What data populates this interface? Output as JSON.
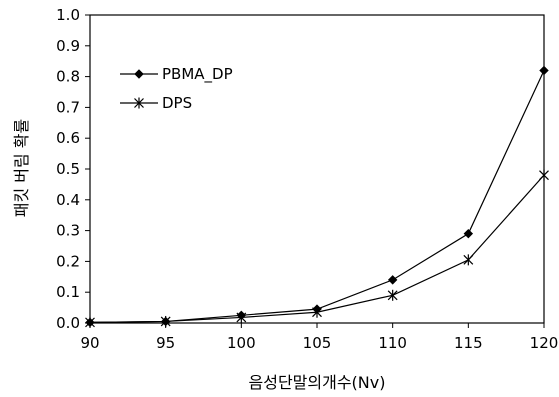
{
  "chart_data": {
    "type": "line",
    "x": [
      90,
      95,
      100,
      105,
      110,
      115,
      120
    ],
    "xlabel": "음성단말의개수(Nv)",
    "ylabel": "패킷 버림 확률",
    "xlim": [
      90,
      120
    ],
    "ylim": [
      0,
      1
    ],
    "x_ticks": [
      "90",
      "95",
      "100",
      "105",
      "110",
      "115",
      "120"
    ],
    "y_ticks": [
      "0.0",
      "0.1",
      "0.2",
      "0.3",
      "0.4",
      "0.5",
      "0.6",
      "0.7",
      "0.8",
      "0.9",
      "1.0"
    ],
    "grid": false,
    "legend_position": "top-left",
    "series": [
      {
        "name": "PBMA_DP",
        "marker": "diamond",
        "color": "#000000",
        "values": [
          0.002,
          0.005,
          0.025,
          0.045,
          0.14,
          0.29,
          0.82
        ]
      },
      {
        "name": "DPS",
        "marker": "asterisk",
        "color": "#000000",
        "values": [
          0.002,
          0.005,
          0.018,
          0.035,
          0.09,
          0.205,
          0.48
        ]
      }
    ]
  }
}
